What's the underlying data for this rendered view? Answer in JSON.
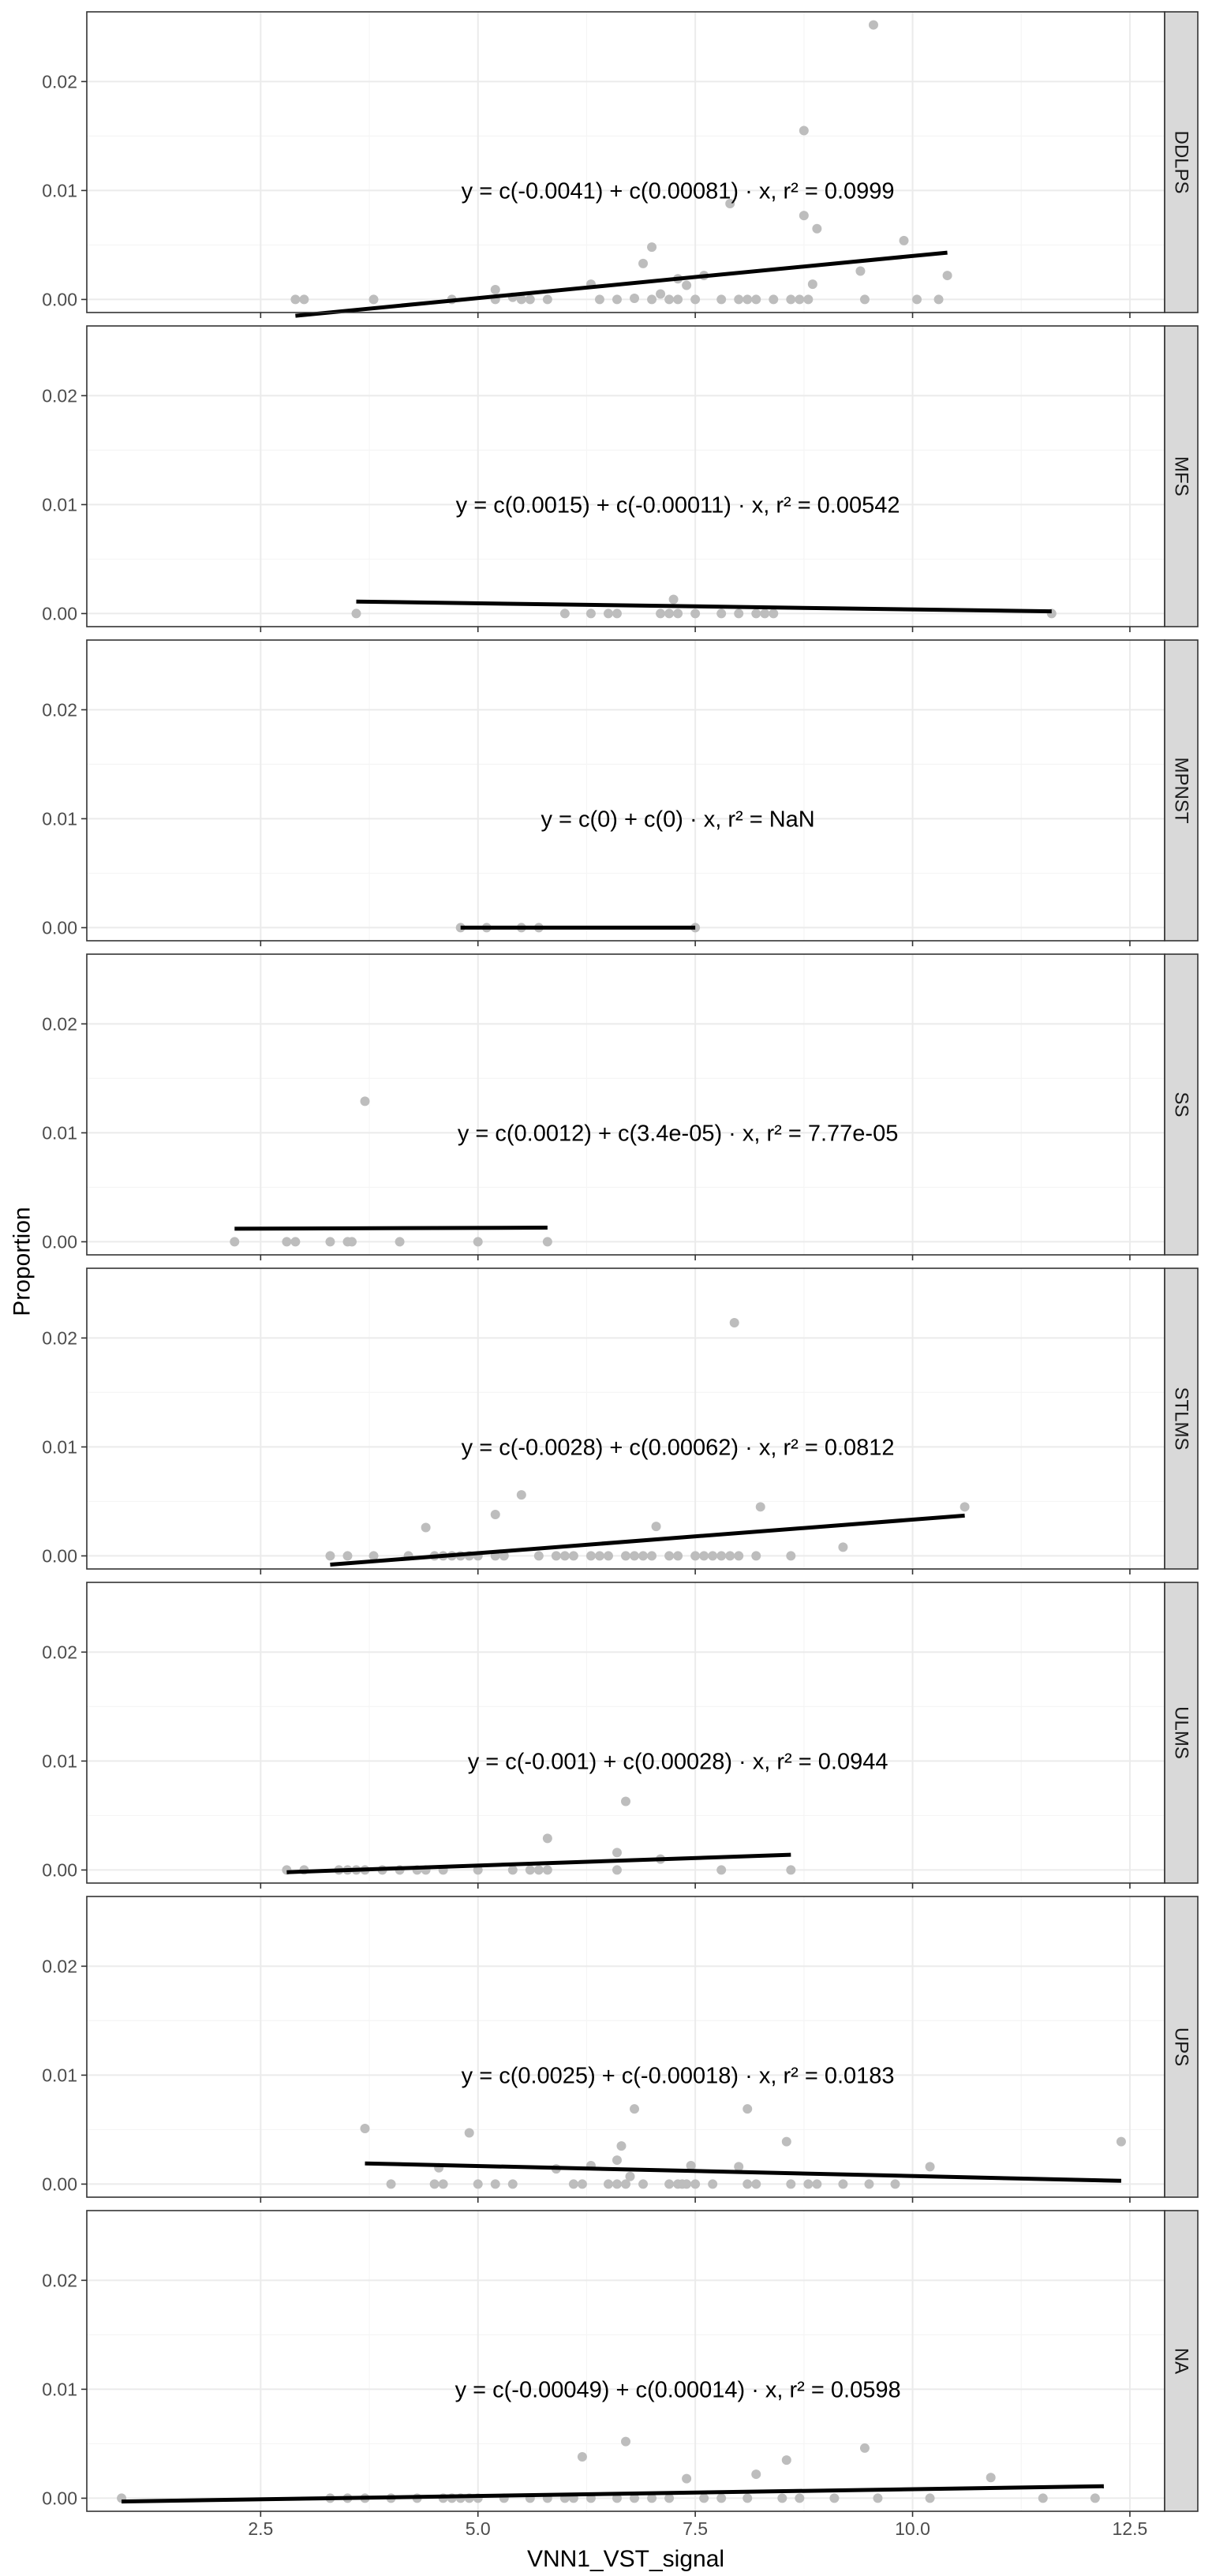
{
  "colors": {
    "point": "#bdbdbd",
    "fit_line": "#000000",
    "panel_border": "#333333",
    "grid_major": "#ebebeb",
    "grid_minor": "#f5f5f5",
    "strip_fill": "#d9d9d9",
    "tick_text": "#4d4d4d"
  },
  "chart_data": {
    "type": "scatter",
    "xlabel": "VNN1_VST_signal",
    "ylabel": "Proportion",
    "xlim": [
      0.5,
      12.9
    ],
    "ylim": [
      -0.0012,
      0.0264
    ],
    "x_ticks": [
      2.5,
      5.0,
      7.5,
      10.0,
      12.5
    ],
    "x_tick_labels": [
      "2.5",
      "5.0",
      "7.5",
      "10.0",
      "12.5"
    ],
    "y_ticks": [
      0,
      0.01,
      0.02
    ],
    "y_tick_labels": [
      "0.00",
      "0.01",
      "0.02"
    ],
    "grid": true,
    "facets": [
      {
        "label": "DDLPS",
        "equation": "y = c(-0.0041) + c(0.00081) · x,  r² = 0.0999",
        "fit": {
          "x0": 2.9,
          "y0": -0.0015,
          "x1": 10.4,
          "y1": 0.0043
        },
        "points": [
          [
            2.9,
            0
          ],
          [
            3.0,
            0
          ],
          [
            3.8,
            0
          ],
          [
            4.7,
            0
          ],
          [
            5.2,
            0
          ],
          [
            5.2,
            0.0009
          ],
          [
            5.4,
            0.0002
          ],
          [
            5.5,
            0
          ],
          [
            5.6,
            0
          ],
          [
            5.8,
            0
          ],
          [
            6.3,
            0.0014
          ],
          [
            6.4,
            0
          ],
          [
            6.6,
            0
          ],
          [
            6.8,
            0.0001
          ],
          [
            6.9,
            0.0033
          ],
          [
            7.0,
            0.0048
          ],
          [
            7.0,
            0
          ],
          [
            7.1,
            0.0005
          ],
          [
            7.2,
            0
          ],
          [
            7.3,
            0
          ],
          [
            7.3,
            0.0019
          ],
          [
            7.4,
            0.0013
          ],
          [
            7.5,
            0
          ],
          [
            7.6,
            0.0022
          ],
          [
            7.8,
            0
          ],
          [
            7.9,
            0.0088
          ],
          [
            8.0,
            0
          ],
          [
            8.1,
            0
          ],
          [
            8.2,
            0
          ],
          [
            8.4,
            0
          ],
          [
            8.6,
            0
          ],
          [
            8.7,
            0
          ],
          [
            8.75,
            0.0155
          ],
          [
            8.75,
            0.0077
          ],
          [
            8.8,
            0
          ],
          [
            8.85,
            0.0014
          ],
          [
            8.9,
            0.0065
          ],
          [
            9.4,
            0.0026
          ],
          [
            9.45,
            0
          ],
          [
            9.55,
            0.0252
          ],
          [
            9.9,
            0.0054
          ],
          [
            10.05,
            0
          ],
          [
            10.3,
            0
          ],
          [
            10.4,
            0.0022
          ]
        ]
      },
      {
        "label": "MFS",
        "equation": "y = c(0.0015) + c(-0.00011) · x,  r² = 0.00542",
        "fit": {
          "x0": 3.6,
          "y0": 0.0011,
          "x1": 11.6,
          "y1": 0.0002
        },
        "points": [
          [
            3.6,
            0
          ],
          [
            6.0,
            0
          ],
          [
            6.3,
            0
          ],
          [
            6.5,
            0
          ],
          [
            6.6,
            0
          ],
          [
            7.1,
            0
          ],
          [
            7.2,
            0
          ],
          [
            7.25,
            0.0013
          ],
          [
            7.3,
            0
          ],
          [
            7.5,
            0
          ],
          [
            7.8,
            0
          ],
          [
            8.0,
            0
          ],
          [
            8.2,
            0
          ],
          [
            8.3,
            0
          ],
          [
            8.4,
            0
          ],
          [
            11.6,
            0
          ]
        ]
      },
      {
        "label": "MPNST",
        "equation": "y = c(0) + c(0) · x,  r² = NaN",
        "fit": {
          "x0": 4.8,
          "y0": 0,
          "x1": 7.5,
          "y1": 0
        },
        "points": [
          [
            4.8,
            0
          ],
          [
            5.1,
            0
          ],
          [
            5.5,
            0
          ],
          [
            5.7,
            0
          ],
          [
            7.5,
            0
          ]
        ]
      },
      {
        "label": "SS",
        "equation": "y = c(0.0012) + c(3.4e-05) · x,  r² = 7.77e-05",
        "fit": {
          "x0": 2.2,
          "y0": 0.0012,
          "x1": 5.8,
          "y1": 0.0013
        },
        "points": [
          [
            2.2,
            0
          ],
          [
            2.8,
            0
          ],
          [
            2.9,
            0
          ],
          [
            3.3,
            0
          ],
          [
            3.5,
            0
          ],
          [
            3.55,
            0
          ],
          [
            3.7,
            0.0129
          ],
          [
            4.1,
            0
          ],
          [
            5.0,
            0
          ],
          [
            5.8,
            0
          ]
        ]
      },
      {
        "label": "STLMS",
        "equation": "y = c(-0.0028) + c(0.00062) · x,  r² = 0.0812",
        "fit": {
          "x0": 3.3,
          "y0": -0.0008,
          "x1": 10.6,
          "y1": 0.0037
        },
        "points": [
          [
            3.3,
            0
          ],
          [
            3.5,
            0
          ],
          [
            3.8,
            0
          ],
          [
            4.2,
            0
          ],
          [
            4.4,
            0.0026
          ],
          [
            4.5,
            0
          ],
          [
            4.6,
            0
          ],
          [
            4.7,
            0
          ],
          [
            4.8,
            0
          ],
          [
            4.9,
            0
          ],
          [
            5.0,
            0
          ],
          [
            5.2,
            0
          ],
          [
            5.2,
            0.0038
          ],
          [
            5.3,
            0
          ],
          [
            5.5,
            0.0056
          ],
          [
            5.7,
            0
          ],
          [
            5.9,
            0
          ],
          [
            6.0,
            0
          ],
          [
            6.1,
            0
          ],
          [
            6.3,
            0
          ],
          [
            6.4,
            0
          ],
          [
            6.5,
            0
          ],
          [
            6.7,
            0
          ],
          [
            6.8,
            0
          ],
          [
            6.9,
            0
          ],
          [
            7.0,
            0
          ],
          [
            7.05,
            0.0027
          ],
          [
            7.2,
            0
          ],
          [
            7.3,
            0
          ],
          [
            7.5,
            0
          ],
          [
            7.6,
            0
          ],
          [
            7.7,
            0
          ],
          [
            7.8,
            0
          ],
          [
            7.9,
            0
          ],
          [
            7.95,
            0.0214
          ],
          [
            8.0,
            0
          ],
          [
            8.2,
            0
          ],
          [
            8.25,
            0.0045
          ],
          [
            8.6,
            0
          ],
          [
            9.2,
            0.0008
          ],
          [
            10.6,
            0.0045
          ]
        ]
      },
      {
        "label": "ULMS",
        "equation": "y = c(-0.001) + c(0.00028) · x,  r² = 0.0944",
        "fit": {
          "x0": 2.8,
          "y0": -0.0002,
          "x1": 8.6,
          "y1": 0.0014
        },
        "points": [
          [
            2.8,
            0
          ],
          [
            3.0,
            0
          ],
          [
            3.4,
            0
          ],
          [
            3.5,
            0
          ],
          [
            3.6,
            0
          ],
          [
            3.7,
            0
          ],
          [
            3.9,
            0
          ],
          [
            4.1,
            0
          ],
          [
            4.3,
            0
          ],
          [
            4.4,
            0
          ],
          [
            4.6,
            0
          ],
          [
            5.0,
            0
          ],
          [
            5.4,
            0
          ],
          [
            5.6,
            0
          ],
          [
            5.7,
            0
          ],
          [
            5.8,
            0.0029
          ],
          [
            5.8,
            0
          ],
          [
            6.6,
            0
          ],
          [
            6.6,
            0.0016
          ],
          [
            6.7,
            0.0063
          ],
          [
            7.1,
            0.001
          ],
          [
            7.8,
            0
          ],
          [
            8.6,
            0
          ]
        ]
      },
      {
        "label": "UPS",
        "equation": "y = c(0.0025) + c(-0.00018) · x,  r² = 0.0183",
        "fit": {
          "x0": 3.7,
          "y0": 0.0019,
          "x1": 12.4,
          "y1": 0.0003
        },
        "points": [
          [
            3.7,
            0.0051
          ],
          [
            4.0,
            0
          ],
          [
            4.5,
            0
          ],
          [
            4.55,
            0.0015
          ],
          [
            4.6,
            0
          ],
          [
            4.9,
            0.0047
          ],
          [
            5.0,
            0
          ],
          [
            5.2,
            0
          ],
          [
            5.4,
            0
          ],
          [
            5.9,
            0.0014
          ],
          [
            6.1,
            0
          ],
          [
            6.2,
            0
          ],
          [
            6.3,
            0.0017
          ],
          [
            6.5,
            0
          ],
          [
            6.6,
            0
          ],
          [
            6.6,
            0.0022
          ],
          [
            6.65,
            0.0035
          ],
          [
            6.7,
            0
          ],
          [
            6.75,
            0.0007
          ],
          [
            6.8,
            0.0069
          ],
          [
            6.9,
            0
          ],
          [
            7.2,
            0
          ],
          [
            7.3,
            0
          ],
          [
            7.35,
            0
          ],
          [
            7.4,
            0
          ],
          [
            7.45,
            0.0017
          ],
          [
            7.5,
            0
          ],
          [
            7.7,
            0
          ],
          [
            8.0,
            0.0016
          ],
          [
            8.1,
            0.0069
          ],
          [
            8.1,
            0
          ],
          [
            8.2,
            0
          ],
          [
            8.55,
            0.0039
          ],
          [
            8.6,
            0
          ],
          [
            8.8,
            0
          ],
          [
            8.9,
            0
          ],
          [
            9.2,
            0
          ],
          [
            9.5,
            0
          ],
          [
            9.8,
            0
          ],
          [
            10.2,
            0.0016
          ],
          [
            12.4,
            0.0039
          ]
        ]
      },
      {
        "label": "NA",
        "equation": "y = c(-0.00049) + c(0.00014) · x,  r² = 0.0598",
        "fit": {
          "x0": 0.9,
          "y0": -0.0003,
          "x1": 12.2,
          "y1": 0.0011
        },
        "points": [
          [
            0.9,
            0
          ],
          [
            3.3,
            0
          ],
          [
            3.5,
            0
          ],
          [
            3.7,
            0
          ],
          [
            4.0,
            0
          ],
          [
            4.3,
            0
          ],
          [
            4.6,
            0
          ],
          [
            4.7,
            0
          ],
          [
            4.8,
            0
          ],
          [
            4.9,
            0
          ],
          [
            5.0,
            0
          ],
          [
            5.3,
            0
          ],
          [
            5.6,
            0
          ],
          [
            5.8,
            0
          ],
          [
            6.0,
            0
          ],
          [
            6.1,
            0
          ],
          [
            6.2,
            0.0038
          ],
          [
            6.3,
            0
          ],
          [
            6.6,
            0
          ],
          [
            6.7,
            0.0052
          ],
          [
            6.8,
            0
          ],
          [
            7.0,
            0
          ],
          [
            7.2,
            0
          ],
          [
            7.4,
            0.0018
          ],
          [
            7.6,
            0
          ],
          [
            7.8,
            0
          ],
          [
            8.1,
            0
          ],
          [
            8.2,
            0.0022
          ],
          [
            8.5,
            0
          ],
          [
            8.55,
            0.0035
          ],
          [
            8.7,
            0
          ],
          [
            9.1,
            0
          ],
          [
            9.45,
            0.0046
          ],
          [
            9.6,
            0
          ],
          [
            10.2,
            0
          ],
          [
            10.9,
            0.0019
          ],
          [
            11.5,
            0
          ],
          [
            12.1,
            0
          ]
        ]
      }
    ]
  }
}
